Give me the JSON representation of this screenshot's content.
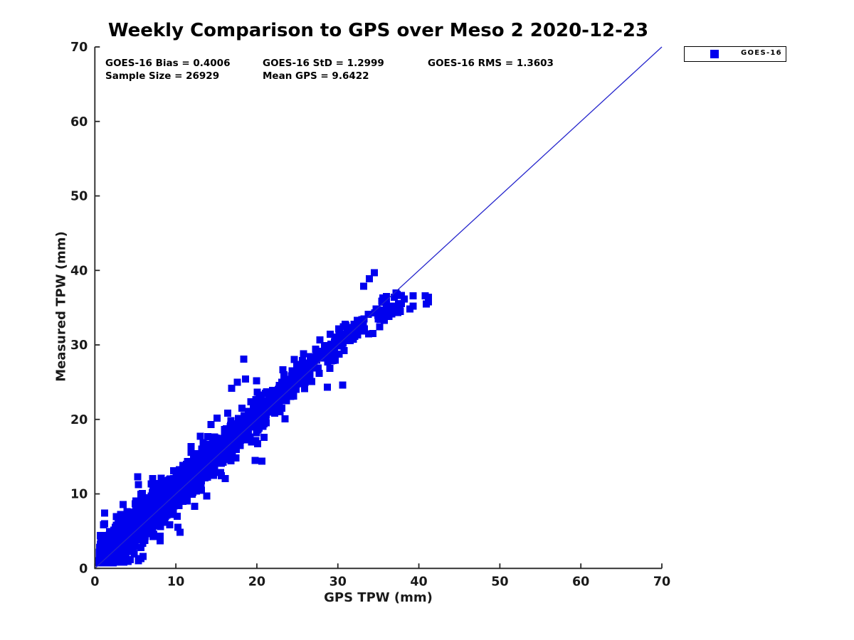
{
  "title": "Weekly Comparison to GPS over Meso 2 2020-12-23",
  "stats": {
    "bias": "GOES-16 Bias = 0.4006",
    "std": "GOES-16 StD = 1.2999",
    "rms": "GOES-16 RMS = 1.3603",
    "sample_size": "Sample Size = 26929",
    "mean_gps": "Mean GPS = 9.6422"
  },
  "legend": {
    "label": "GOES-16"
  },
  "colors": {
    "marker": "#0000ee",
    "identity_line": "#2424cc",
    "axis": "#262626",
    "tick_text": "#1a1a1a"
  },
  "chart_data": {
    "type": "scatter",
    "title": "Weekly Comparison to GPS over Meso 2 2020-12-23",
    "xlabel": "GPS TPW (mm)",
    "ylabel": "Measured TPW (mm)",
    "xlim": [
      0,
      70
    ],
    "ylim": [
      0,
      70
    ],
    "xticks": [
      0,
      10,
      20,
      30,
      40,
      50,
      60,
      70
    ],
    "yticks": [
      0,
      10,
      20,
      30,
      40,
      50,
      60,
      70
    ],
    "grid": false,
    "legend_position": "outside-top-right",
    "series": [
      {
        "name": "GOES-16",
        "marker": "filled-square",
        "color": "#0000ee",
        "sample_size": 26929,
        "summary": {
          "bias": 0.4006,
          "std": 1.2999,
          "rms": 1.3603,
          "mean_gps": 9.6422
        },
        "x_range": [
          0.5,
          41.3
        ],
        "y_range": [
          0.8,
          39.7
        ]
      }
    ],
    "identity_line": {
      "x1": 0,
      "y1": 0,
      "x2": 70,
      "y2": 70
    },
    "render_model": {
      "seed": 42,
      "n_draw": 3600,
      "marker_px": 10,
      "x_cdf_u": [
        0,
        0.1,
        0.28,
        0.52,
        0.7,
        0.8,
        0.875,
        0.925,
        0.962,
        0.99,
        1.0
      ],
      "x_cdf_x": [
        0.5,
        1.8,
        4.0,
        7.5,
        11,
        14,
        18,
        22,
        26,
        33,
        38.2
      ],
      "slope": 1.0,
      "intercept": 0.4,
      "knee_x": 32,
      "knee_slope": 0.55,
      "sigma_core": 1.0,
      "sigma_wide": 2.0,
      "wide_frac": 0.15,
      "y_min": 0.75,
      "y_max": 39.3,
      "outliers": [
        [
          18.4,
          28.1
        ],
        [
          18.6,
          25.4
        ],
        [
          17.6,
          25.0
        ],
        [
          16.9,
          24.2
        ],
        [
          19.8,
          14.5
        ],
        [
          20.6,
          14.4
        ],
        [
          28.7,
          24.3
        ],
        [
          30.6,
          24.6
        ],
        [
          34.5,
          39.7
        ],
        [
          33.9,
          38.9
        ],
        [
          33.2,
          37.9
        ],
        [
          36.0,
          36.5
        ],
        [
          37.3,
          36.8
        ],
        [
          38.9,
          34.8
        ],
        [
          39.3,
          36.6
        ],
        [
          39.3,
          35.2
        ],
        [
          40.8,
          36.6
        ],
        [
          40.9,
          35.5
        ],
        [
          41.2,
          36.4
        ],
        [
          41.2,
          35.8
        ],
        [
          0.9,
          1.0
        ],
        [
          1.1,
          1.3
        ]
      ]
    }
  }
}
